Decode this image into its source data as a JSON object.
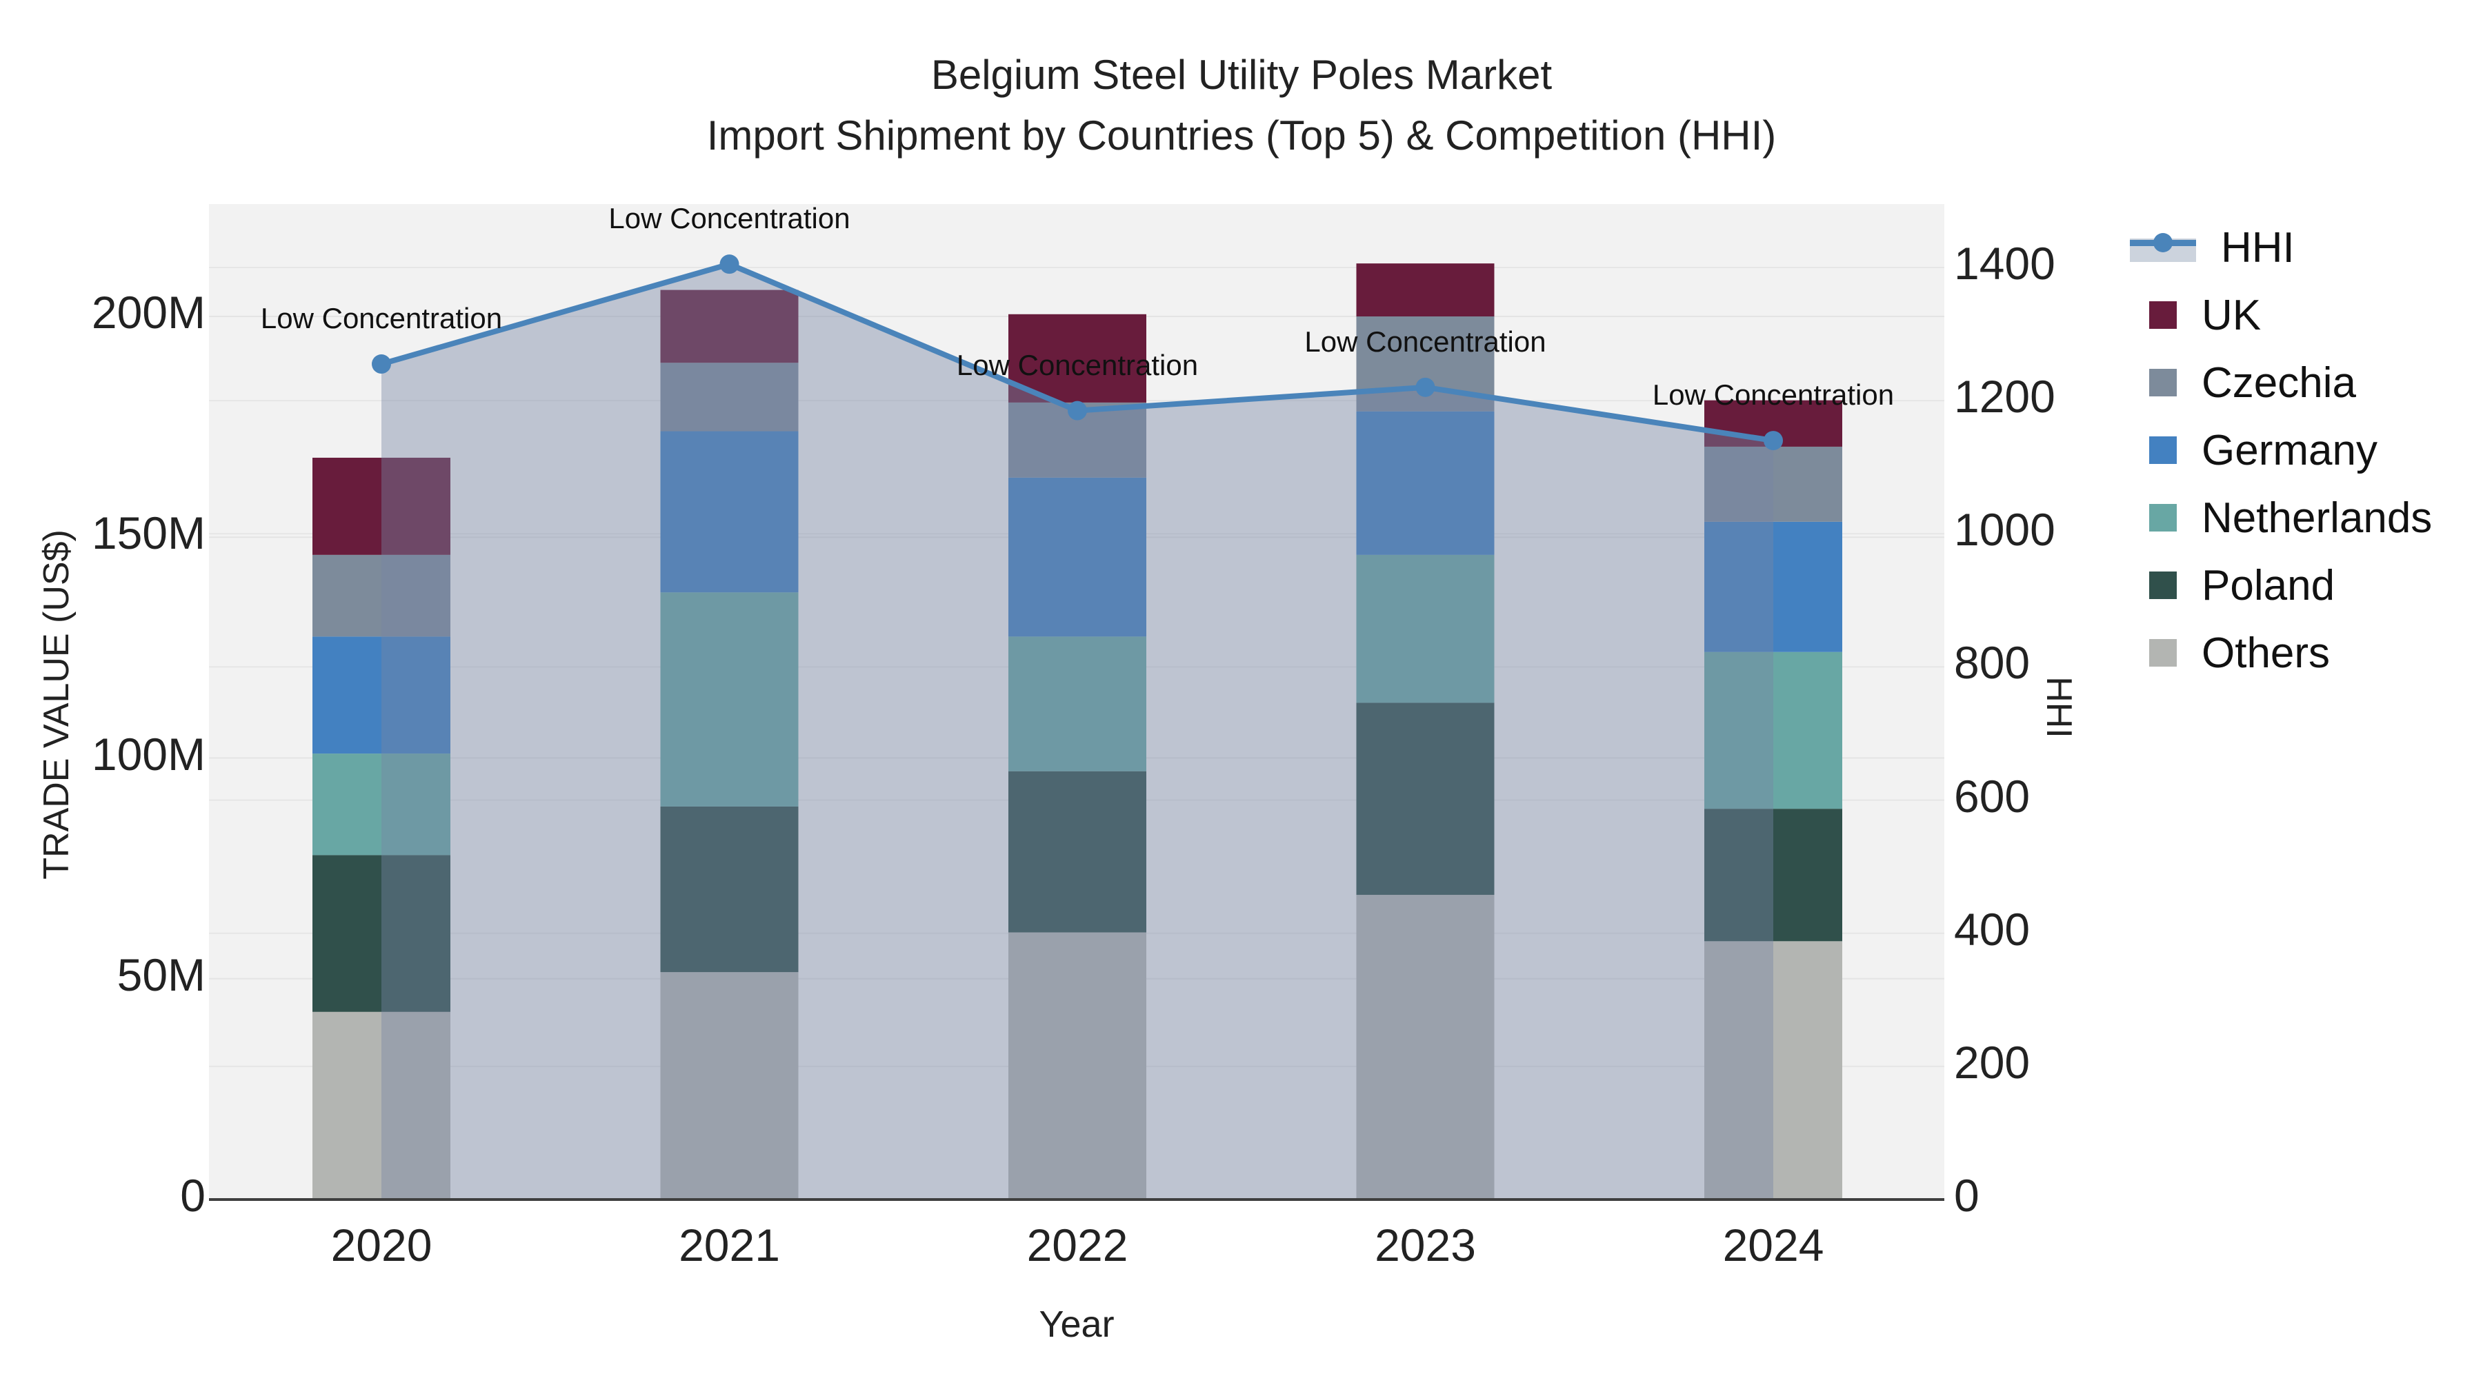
{
  "title": {
    "line1": "Belgium Steel Utility Poles Market",
    "line2": "Import Shipment by Countries (Top 5) & Competition (HHI)"
  },
  "axes": {
    "left": {
      "title": "TRADE VALUE (US$)",
      "ticks": [
        "0",
        "50M",
        "100M",
        "150M",
        "200M"
      ],
      "tick_values_m": [
        0,
        50,
        100,
        150,
        200
      ]
    },
    "right": {
      "title": "HHI",
      "ticks": [
        "0",
        "200",
        "400",
        "600",
        "800",
        "1000",
        "1200",
        "1400"
      ],
      "tick_values": [
        0,
        200,
        400,
        600,
        800,
        1000,
        1200,
        1400
      ]
    },
    "x": {
      "title": "Year",
      "ticks": [
        "2020",
        "2021",
        "2022",
        "2023",
        "2024"
      ]
    }
  },
  "legend": {
    "items": [
      {
        "label": "HHI",
        "type": "line",
        "color": "#4a84ba",
        "band_color": "#ccd3dd"
      },
      {
        "label": "UK",
        "type": "swatch",
        "color": "#681c3c"
      },
      {
        "label": "Czechia",
        "type": "swatch",
        "color": "#7d8b9b"
      },
      {
        "label": "Germany",
        "type": "swatch",
        "color": "#4381c1"
      },
      {
        "label": "Netherlands",
        "type": "swatch",
        "color": "#68a7a4"
      },
      {
        "label": "Poland",
        "type": "swatch",
        "color": "#30504b"
      },
      {
        "label": "Others",
        "type": "swatch",
        "color": "#b3b5b2"
      }
    ]
  },
  "annotation_label": "Low Concentration",
  "chart_data": {
    "type": "stacked-bar+line",
    "title": "Belgium Steel Utility Poles Market — Import Shipment by Countries (Top 5) & Competition (HHI)",
    "categories": [
      "2020",
      "2021",
      "2022",
      "2023",
      "2024"
    ],
    "xlabel": "Year",
    "ylabel_left": "TRADE VALUE (US$)",
    "ylabel_right": "HHI",
    "ylim_left_millions": [
      0,
      225
    ],
    "ylim_right": [
      0,
      1495
    ],
    "grid": true,
    "legend_position": "right",
    "stack_order_bottom_to_top": [
      "Others",
      "Poland",
      "Netherlands",
      "Germany",
      "Czechia",
      "UK"
    ],
    "series": [
      {
        "name": "Others",
        "unit": "M US$",
        "color": "#b3b5b2",
        "values": [
          42.5,
          51.5,
          60.5,
          69.0,
          58.5
        ]
      },
      {
        "name": "Poland",
        "unit": "M US$",
        "color": "#30504b",
        "values": [
          35.5,
          37.5,
          36.5,
          43.5,
          30.0
        ]
      },
      {
        "name": "Netherlands",
        "unit": "M US$",
        "color": "#68a7a4",
        "values": [
          23.0,
          48.5,
          30.5,
          33.5,
          35.5
        ]
      },
      {
        "name": "Germany",
        "unit": "M US$",
        "color": "#4381c1",
        "values": [
          26.5,
          36.5,
          36.0,
          32.5,
          29.5
        ]
      },
      {
        "name": "Czechia",
        "unit": "M US$",
        "color": "#7d8b9b",
        "values": [
          18.5,
          15.5,
          17.0,
          21.5,
          17.0
        ]
      },
      {
        "name": "UK",
        "unit": "M US$",
        "color": "#681c3c",
        "values": [
          22.0,
          16.5,
          20.0,
          12.0,
          10.5
        ]
      }
    ],
    "totals_millions": [
      168.0,
      206.0,
      200.5,
      212.0,
      181.0
    ],
    "line_series": {
      "name": "HHI",
      "axis": "right",
      "values": [
        1255,
        1405,
        1185,
        1220,
        1140
      ],
      "color": "#4a84ba",
      "fill_color": "rgba(119,133,164,0.42)",
      "markers": true,
      "point_annotations": [
        "Low Concentration",
        "Low Concentration",
        "Low Concentration",
        "Low Concentration",
        "Low Concentration"
      ]
    }
  }
}
